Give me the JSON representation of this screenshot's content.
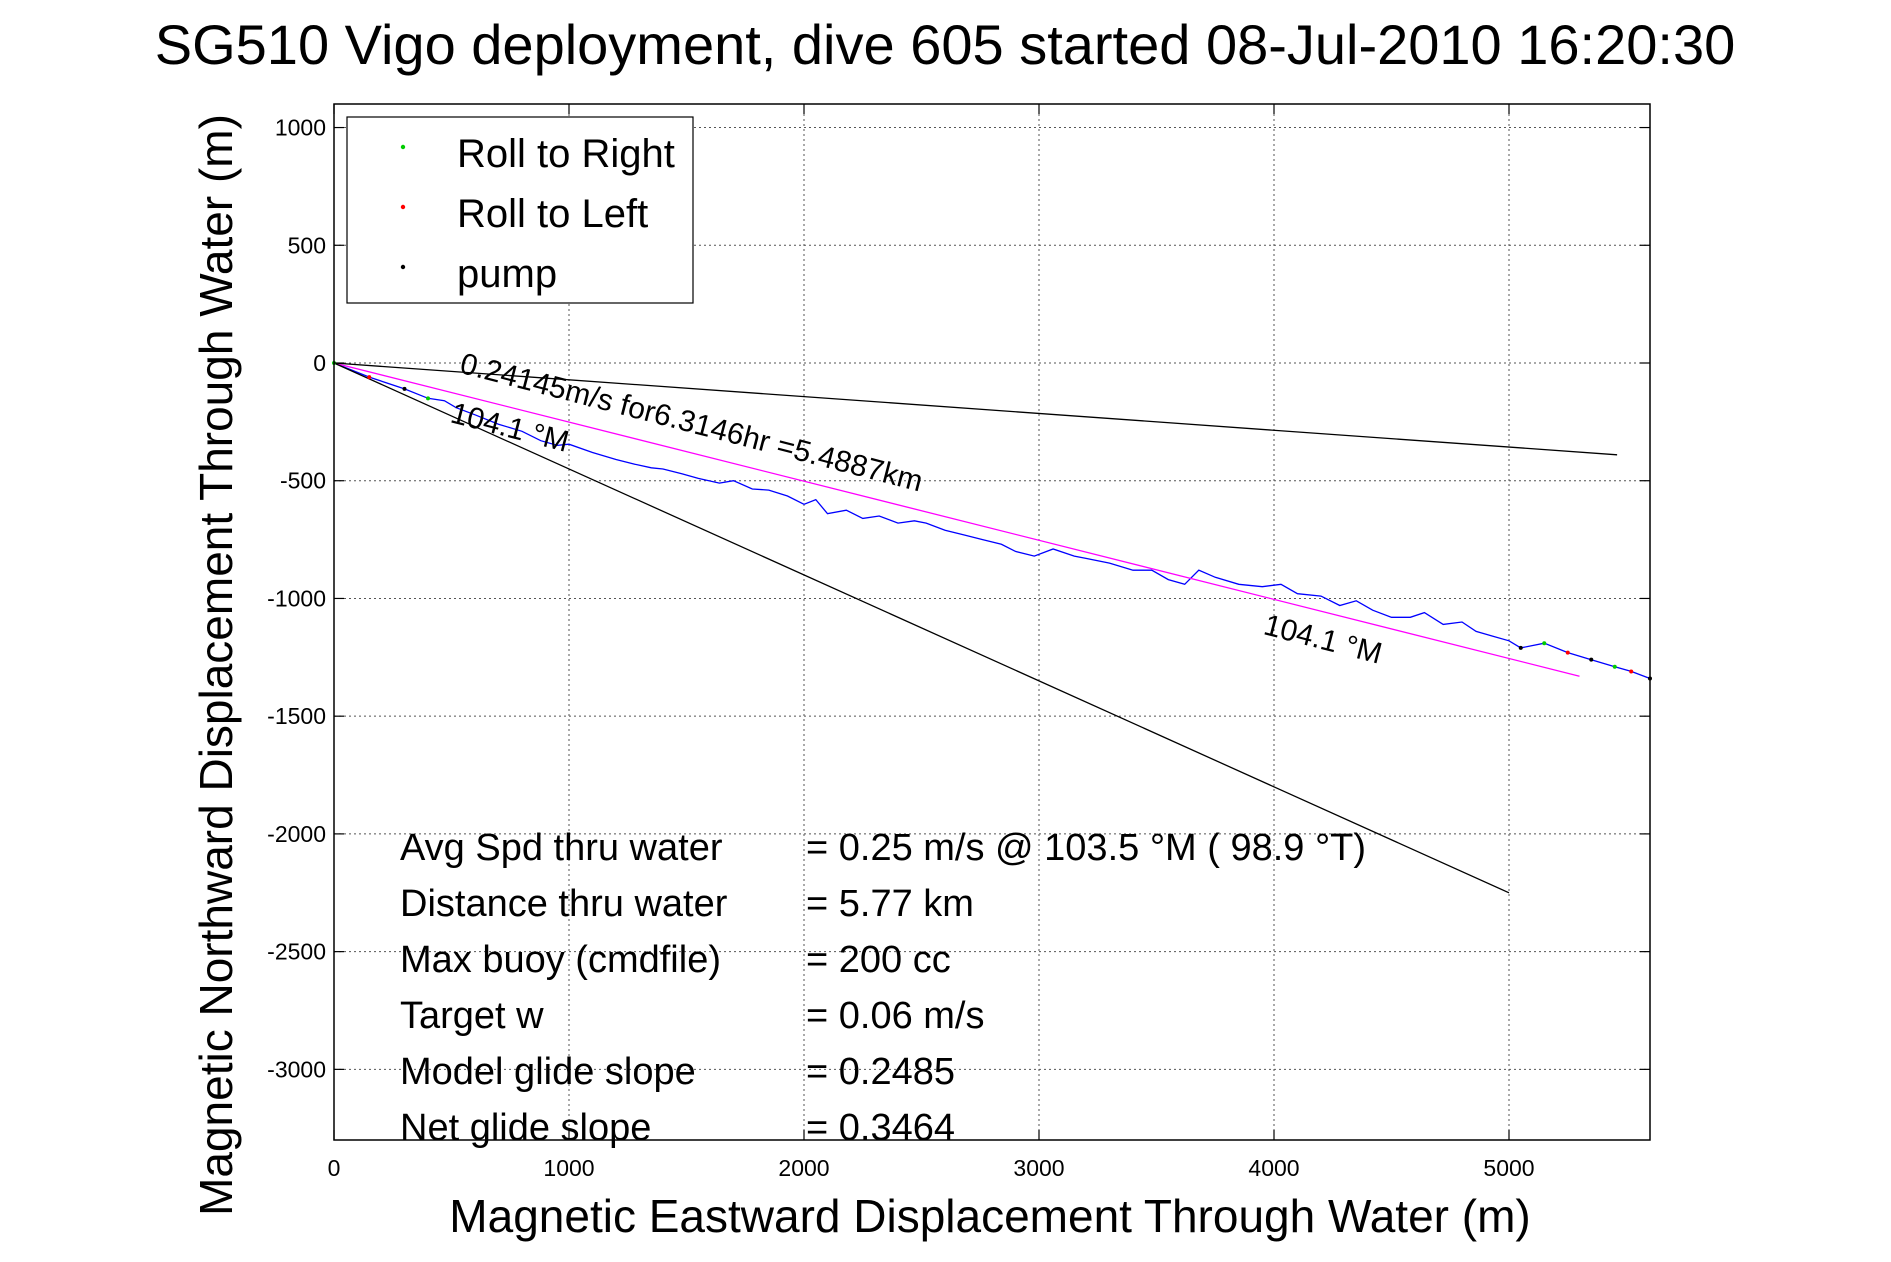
{
  "chart_data": {
    "type": "line",
    "title": "SG510 Vigo deployment, dive 605 started 08-Jul-2010 16:20:30",
    "xlabel": "Magnetic Eastward Displacement Through Water (m)",
    "ylabel": "Magnetic Northward Displacement Through Water (m)",
    "xlim": [
      0,
      5600
    ],
    "ylim": [
      -3300,
      1100
    ],
    "xticks": [
      0,
      1000,
      2000,
      3000,
      4000,
      5000
    ],
    "yticks": [
      1000,
      500,
      0,
      -500,
      -1000,
      -1500,
      -2000,
      -2500,
      -3000
    ],
    "grid": true,
    "legend": {
      "placement": "top-left",
      "entries": [
        {
          "label": "Roll to Right",
          "color": "#00cc00"
        },
        {
          "label": "Roll to Left",
          "color": "#ff0000"
        },
        {
          "label": "pump",
          "color": "#000000"
        }
      ]
    },
    "series": [
      {
        "color": "#0000ff",
        "x": [
          0,
          150,
          300,
          400,
          470,
          520,
          600,
          700,
          800,
          880,
          950,
          1000,
          1100,
          1200,
          1280,
          1350,
          1400,
          1480,
          1550,
          1640,
          1700,
          1780,
          1850,
          1930,
          2000,
          2050,
          2100,
          2180,
          2250,
          2320,
          2400,
          2470,
          2520,
          2600,
          2680,
          2760,
          2840,
          2900,
          2980,
          3060,
          3150,
          3200,
          3300,
          3400,
          3480,
          3550,
          3620,
          3680,
          3750,
          3850,
          3950,
          4030,
          4100,
          4200,
          4280,
          4350,
          4420,
          4500,
          4580,
          4640,
          4720,
          4800,
          4860,
          4930,
          5000,
          5050,
          5150,
          5250,
          5350,
          5450,
          5520,
          5600
        ],
        "y": [
          0,
          -60,
          -110,
          -150,
          -160,
          -190,
          -220,
          -260,
          -290,
          -330,
          -350,
          -345,
          -380,
          -410,
          -430,
          -445,
          -450,
          -470,
          -490,
          -510,
          -500,
          -535,
          -540,
          -565,
          -600,
          -580,
          -640,
          -625,
          -660,
          -650,
          -680,
          -670,
          -680,
          -710,
          -730,
          -750,
          -770,
          -800,
          -820,
          -790,
          -820,
          -830,
          -850,
          -880,
          -880,
          -920,
          -940,
          -880,
          -910,
          -940,
          -950,
          -940,
          -980,
          -990,
          -1030,
          -1010,
          -1050,
          -1080,
          -1080,
          -1060,
          -1110,
          -1100,
          -1140,
          -1160,
          -1180,
          -1210,
          -1190,
          -1230,
          -1260,
          -1290,
          -1310,
          -1340
        ]
      },
      {
        "color": "#ff00ff",
        "x": [
          0,
          5300
        ],
        "y": [
          0,
          -1330
        ]
      },
      {
        "color": "#000000",
        "x": [
          0,
          5460
        ],
        "y": [
          0,
          -390
        ]
      },
      {
        "color": "#000000",
        "x": [
          0,
          5000
        ],
        "y": [
          0,
          -2250
        ]
      }
    ],
    "annotations": [
      {
        "text": "0.24145m/s for6.3146hr =5.4887km",
        "x": 530,
        "y": -40,
        "angle": 14.5,
        "size": 30
      },
      {
        "text": "104.1 °M",
        "x": 490,
        "y": -250,
        "angle": 14.5,
        "size": 30
      },
      {
        "text": "104.1 °M",
        "x": 3950,
        "y": -1150,
        "angle": 14.5,
        "size": 30
      }
    ],
    "stats": [
      {
        "label": "Avg Spd thru water",
        "value": "=  0.25 m/s @ 103.5 °M ( 98.9 °T)"
      },
      {
        "label": "Distance thru water",
        "value": "=  5.77 km"
      },
      {
        "label": "Max buoy (cmdfile)",
        "value": "= 200 cc"
      },
      {
        "label": "Target w",
        "value": "= 0.06 m/s"
      },
      {
        "label": "Model glide slope",
        "value": "= 0.2485"
      },
      {
        "label": "Net glide slope",
        "value": "= 0.3464"
      }
    ]
  }
}
